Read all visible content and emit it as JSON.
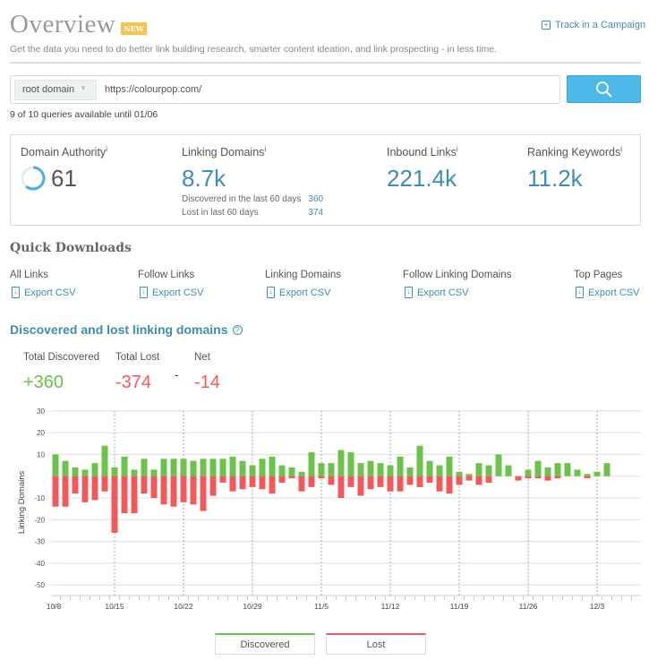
{
  "header": {
    "title": "Overview",
    "badge": "NEW",
    "track_label": "Track in a Campaign",
    "subtitle": "Get the data you need to do better link building research, smarter content ideation, and link prospecting - in less time."
  },
  "search": {
    "scope": "root domain",
    "url": "https://colourpop.com/",
    "quota": "9 of 10 queries available until 01/06"
  },
  "metrics": {
    "da": {
      "label": "Domain Authority",
      "value": "61",
      "fraction": 0.61
    },
    "ld": {
      "label": "Linking Domains",
      "value": "8.7k",
      "discovered_label": "Discovered in the last 60 days",
      "discovered": "360",
      "lost_label": "Lost in last 60 days",
      "lost": "374"
    },
    "il": {
      "label": "Inbound Links",
      "value": "221.4k"
    },
    "rk": {
      "label": "Ranking Keywords",
      "value": "11.2k"
    },
    "info": "i"
  },
  "downloads": {
    "title": "Quick Downloads",
    "export_label": "Export CSV",
    "items": [
      "All Links",
      "Follow Links",
      "Linking Domains",
      "Follow Linking Domains",
      "Top Pages"
    ]
  },
  "section": {
    "title": "Discovered and lost linking domains",
    "help": "?",
    "total_discovered_label": "Total Discovered",
    "total_discovered": "+360",
    "total_lost_label": "Total Lost",
    "total_lost": "-374",
    "sep": "-",
    "net_label": "Net",
    "net": "-14"
  },
  "colors": {
    "discovered": "#6cc24a",
    "lost": "#f05a5b",
    "accent": "#3f8db5"
  },
  "chart_data": {
    "type": "bar",
    "ylabel": "Linking Domains",
    "ylim": [
      -55,
      30
    ],
    "yticks": [
      30,
      20,
      10,
      0,
      -10,
      -20,
      -30,
      -40,
      -50
    ],
    "ytick_labels": [
      "30",
      "20",
      "10",
      "",
      "-10",
      "-20",
      "-30",
      "-40",
      "-50"
    ],
    "xtick_labels": [
      "10/8",
      "10/15",
      "10/22",
      "10/29",
      "11/5",
      "11/12",
      "11/19",
      "11/26",
      "12/3"
    ],
    "first_date": "10/9",
    "legend": [
      "Discovered",
      "Lost"
    ],
    "series": [
      {
        "name": "Discovered",
        "values": [
          10,
          7,
          4,
          3,
          6,
          14,
          4,
          9,
          3,
          8,
          3,
          8,
          8,
          8,
          7,
          8,
          8,
          8,
          9,
          7,
          5,
          8,
          9,
          5,
          4,
          2,
          11,
          6,
          6,
          12,
          11,
          6,
          7,
          6,
          5,
          9,
          4,
          14,
          7,
          5,
          9,
          2,
          1,
          6,
          5,
          10,
          5,
          0,
          3,
          7,
          4,
          6,
          6,
          3,
          1,
          2,
          6
        ]
      },
      {
        "name": "Lost",
        "values": [
          -14,
          -14,
          -8,
          -12,
          -11,
          -7,
          -26,
          -17,
          -17,
          -8,
          -10,
          -13,
          -14,
          -12,
          -13,
          -16,
          -9,
          -3,
          -7,
          -6,
          -5,
          -6,
          -8,
          -3,
          -1,
          -7,
          -5,
          -1,
          -4,
          -10,
          -5,
          -9,
          -6,
          -5,
          -7,
          -7,
          -4,
          -5,
          -3,
          -7,
          -8,
          -4,
          -2,
          -4,
          -3,
          0,
          0,
          -2,
          -1,
          -1,
          -2,
          -1,
          0,
          0,
          -1,
          0,
          0
        ]
      }
    ]
  }
}
